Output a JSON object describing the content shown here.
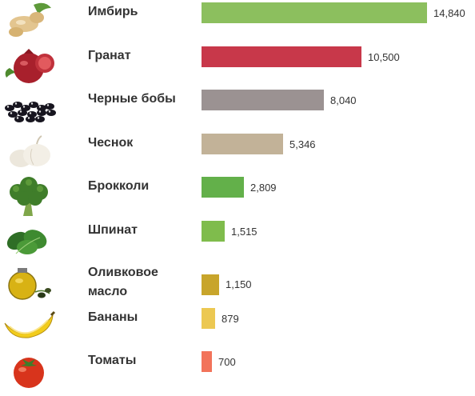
{
  "chart_data": {
    "type": "bar",
    "orientation": "horizontal",
    "title": "",
    "xlabel": "",
    "ylabel": "",
    "grid": false,
    "xlim": [
      0,
      15000
    ],
    "categories": [
      "Имбирь",
      "Гранат",
      "Черные бобы",
      "Чеснок",
      "Брокколи",
      "Шпинат",
      "Оливковое масло",
      "Бананы",
      "Томаты"
    ],
    "value_labels": [
      "14,840",
      "10,500",
      "8,040",
      "5,346",
      "2,809",
      "1,515",
      "1,150",
      "879",
      "700"
    ],
    "values": [
      14840,
      10500,
      8040,
      5346,
      2809,
      1515,
      1150,
      879,
      700
    ],
    "colors": [
      "#8cbf5e",
      "#c8384a",
      "#9b9292",
      "#c2b298",
      "#63b04a",
      "#7fbc4c",
      "#c8a52b",
      "#ecc852",
      "#f2735a"
    ],
    "icons": [
      "ginger-icon",
      "pomegranate-icon",
      "black-beans-icon",
      "garlic-icon",
      "broccoli-icon",
      "spinach-icon",
      "olive-oil-icon",
      "banana-icon",
      "tomato-icon"
    ]
  }
}
